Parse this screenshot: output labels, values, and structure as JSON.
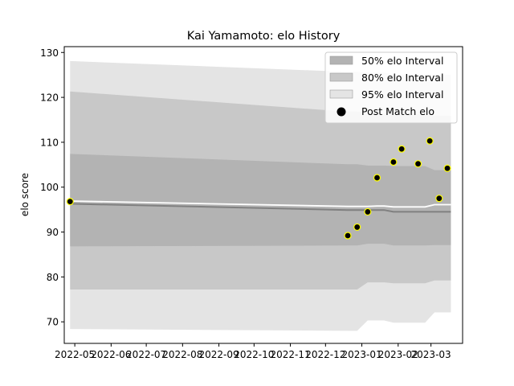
{
  "chart_data": {
    "type": "area",
    "title": "Kai Yamamoto: elo History",
    "xlabel": "",
    "ylabel": "elo score",
    "xlim": [
      "2022-04-22",
      "2023-03-28"
    ],
    "ylim": [
      65.2,
      131.3
    ],
    "x_ticks": [
      "2022-05",
      "2022-06",
      "2022-07",
      "2022-08",
      "2022-09",
      "2022-10",
      "2022-11",
      "2022-12",
      "2023-01",
      "2023-02",
      "2023-03"
    ],
    "y_ticks": [
      70,
      80,
      90,
      100,
      110,
      120,
      130
    ],
    "legend": {
      "position": "upper-right",
      "entries": [
        "50% elo Interval",
        "80% elo Interval",
        "95% elo Interval",
        "Post Match elo"
      ]
    },
    "colors": {
      "band50": "#b3b3b3",
      "band80": "#c8c8c8",
      "band95": "#e4e4e4",
      "mean_line": "#808080",
      "rating_line": "#ffffff",
      "point_fill": "#000000",
      "point_edge": "#ffff00"
    },
    "dates": [
      "2022-04-27",
      "2022-12-20",
      "2022-12-28",
      "2023-01-06",
      "2023-01-14",
      "2023-01-20",
      "2023-01-28",
      "2023-02-04",
      "2023-02-14",
      "2023-02-24",
      "2023-03-04",
      "2023-03-11",
      "2023-03-18"
    ],
    "bands": [
      {
        "name": "95% elo Interval",
        "lower": [
          68.4,
          68.0,
          68.0,
          70.3,
          70.3,
          70.3,
          69.8,
          69.8,
          69.8,
          69.8,
          72.1,
          72.1,
          72.1
        ],
        "upper": [
          128.1,
          125.7,
          125.7,
          125.5,
          125.5,
          125.5,
          125.1,
          125.1,
          125.1,
          125.1,
          125.0,
          125.0,
          125.0
        ]
      },
      {
        "name": "80% elo Interval",
        "lower": [
          77.2,
          77.2,
          77.2,
          78.8,
          78.8,
          78.8,
          78.6,
          78.6,
          78.6,
          78.6,
          79.2,
          79.2,
          79.2
        ],
        "upper": [
          121.3,
          116.8,
          116.8,
          116.5,
          116.5,
          116.5,
          116.2,
          116.2,
          116.2,
          116.2,
          115.9,
          115.9,
          115.9
        ]
      },
      {
        "name": "50% elo Interval",
        "lower": [
          86.8,
          87.0,
          87.0,
          87.4,
          87.4,
          87.4,
          87.0,
          87.0,
          87.0,
          87.0,
          87.1,
          87.1,
          87.1
        ],
        "upper": [
          107.4,
          105.1,
          105.1,
          104.8,
          104.8,
          104.8,
          104.7,
          104.7,
          104.7,
          104.7,
          103.8,
          103.8,
          103.8
        ]
      }
    ],
    "mean": [
      96.3,
      94.9,
      94.9,
      94.9,
      94.9,
      94.9,
      94.5,
      94.5,
      94.5,
      94.5,
      94.5,
      94.5,
      94.5
    ],
    "rating": [
      96.9,
      95.7,
      95.7,
      95.7,
      95.8,
      95.8,
      95.6,
      95.6,
      95.6,
      95.6,
      96.1,
      96.1,
      96.1
    ],
    "series": [
      {
        "name": "Post Match elo",
        "x": [
          "2022-04-27",
          "2022-12-20",
          "2022-12-28",
          "2023-01-06",
          "2023-01-14",
          "2023-01-28",
          "2023-02-04",
          "2023-02-18",
          "2023-02-28",
          "2023-03-08",
          "2023-03-15"
        ],
        "y": [
          96.8,
          89.2,
          91.1,
          94.5,
          102.1,
          105.6,
          108.5,
          105.2,
          110.3,
          97.5,
          104.2
        ]
      }
    ]
  }
}
